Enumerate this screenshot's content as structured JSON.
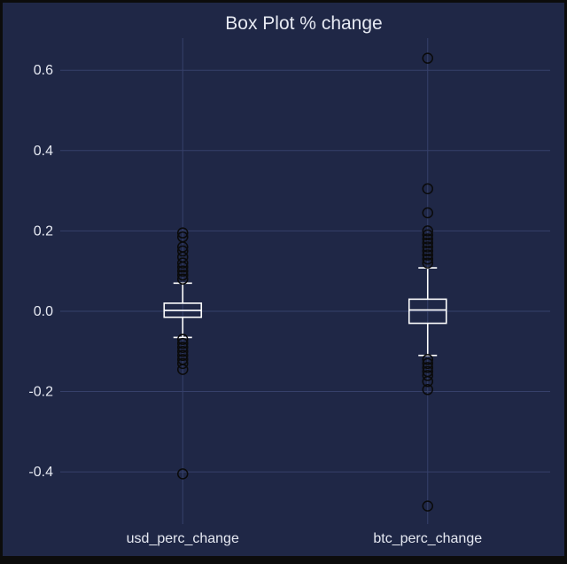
{
  "chart_data": {
    "type": "box",
    "title": "Box Plot % change",
    "xlabel": "",
    "ylabel": "",
    "ylim": [
      -0.53,
      0.68
    ],
    "yticks": [
      -0.4,
      -0.2,
      0.0,
      0.2,
      0.4,
      0.6
    ],
    "ytick_labels": [
      "-0.4",
      "-0.2",
      "0.0",
      "0.2",
      "0.4",
      "0.6"
    ],
    "grid": true,
    "colors": {
      "background": "#1f2746",
      "grid": "#36406a",
      "box": "#ffffff",
      "flier": "#0a0a0a",
      "text": "#e6e9f2"
    },
    "categories": [
      "usd_perc_change",
      "btc_perc_change"
    ],
    "series": [
      {
        "whisker_low": -0.065,
        "q1": -0.015,
        "median": 0.002,
        "q3": 0.02,
        "whisker_high": 0.07,
        "fliers": [
          0.195,
          0.185,
          0.16,
          0.15,
          0.135,
          0.12,
          0.11,
          0.1,
          0.09,
          0.08,
          -0.07,
          -0.08,
          -0.09,
          -0.1,
          -0.11,
          -0.12,
          -0.13,
          -0.145,
          -0.405
        ]
      },
      {
        "whisker_low": -0.11,
        "q1": -0.03,
        "median": 0.003,
        "q3": 0.03,
        "whisker_high": 0.108,
        "fliers": [
          0.63,
          0.305,
          0.245,
          0.2,
          0.19,
          0.18,
          0.17,
          0.16,
          0.15,
          0.14,
          0.13,
          0.12,
          -0.12,
          -0.13,
          -0.14,
          -0.15,
          -0.16,
          -0.175,
          -0.195,
          -0.485
        ]
      }
    ]
  }
}
